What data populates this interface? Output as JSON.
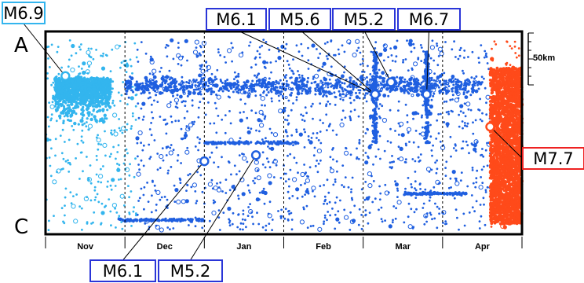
{
  "chart_data": {
    "type": "scatter",
    "x_axis": {
      "ticks": [
        "Nov",
        "Dec",
        "Jan",
        "Feb",
        "Mar",
        "Apr"
      ],
      "range_months": [
        0,
        6
      ]
    },
    "y_axis": {
      "top_label": "A",
      "bottom_label": "C",
      "scale_bar_label": "50km",
      "range": [
        0,
        1
      ]
    },
    "grid": "vertical dashed lines at month boundaries",
    "colors": {
      "early_period": "#33b5ee",
      "main_period": "#1f5fe0",
      "late_period": "#ff4a1a",
      "label_border_blue": "#2a35d8",
      "label_border_cyan": "#33b5ee",
      "label_border_red": "#ee2222"
    },
    "background_seismicity": {
      "note": "thousands of small events along the section over time",
      "early_cluster_months": [
        0.15,
        0.75
      ],
      "late_cluster_months": [
        5.6,
        6.0
      ]
    },
    "labeled_events": [
      {
        "label": "M6.9",
        "month": 0.25,
        "position": 0.22,
        "color_key": "early_period"
      },
      {
        "label": "M6.1",
        "month": 4.15,
        "position": 0.31,
        "color_key": "main_period"
      },
      {
        "label": "M5.6",
        "month": 4.15,
        "position": 0.31,
        "color_key": "main_period"
      },
      {
        "label": "M5.2",
        "month": 4.35,
        "position": 0.25,
        "color_key": "main_period"
      },
      {
        "label": "M6.7",
        "month": 4.8,
        "position": 0.31,
        "color_key": "main_period"
      },
      {
        "label": "M7.7",
        "month": 5.6,
        "position": 0.47,
        "color_key": "late_period"
      },
      {
        "label": "M6.1",
        "month": 2.0,
        "position": 0.64,
        "color_key": "main_period"
      },
      {
        "label": "M5.2",
        "month": 2.65,
        "position": 0.61,
        "color_key": "main_period"
      }
    ]
  }
}
